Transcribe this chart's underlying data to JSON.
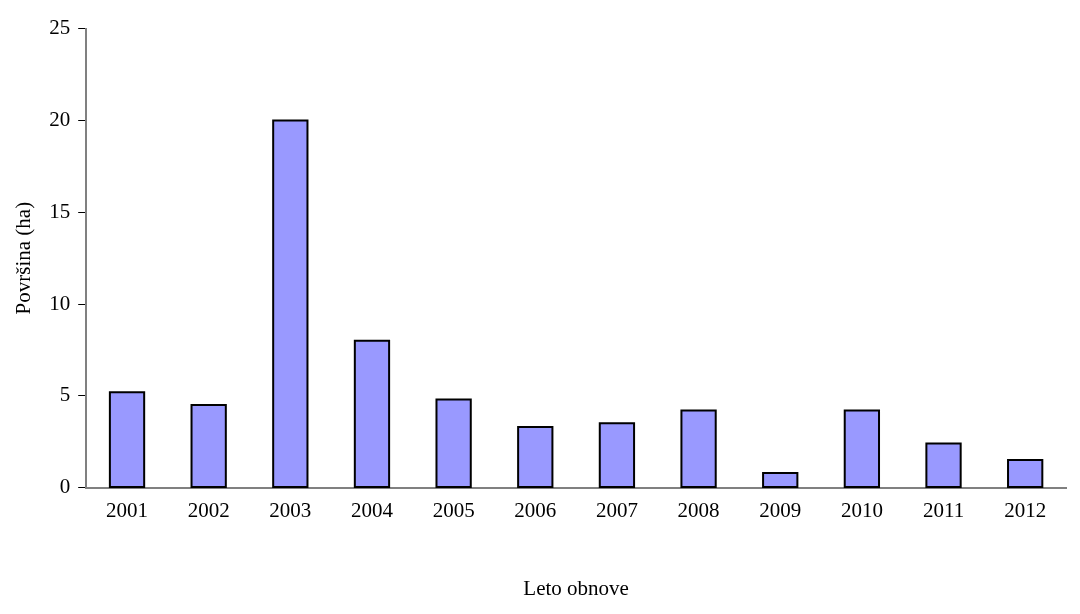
{
  "chart_data": {
    "type": "bar",
    "xlabel": "Leto obnove",
    "ylabel": "Površina (ha)",
    "categories": [
      "2001",
      "2002",
      "2003",
      "2004",
      "2005",
      "2006",
      "2007",
      "2008",
      "2009",
      "2010",
      "2011",
      "2012"
    ],
    "values": [
      5.2,
      4.5,
      20.0,
      8.0,
      4.8,
      3.3,
      3.5,
      4.2,
      0.8,
      4.2,
      2.4,
      1.5
    ],
    "color": "#9999ff",
    "ylim": [
      0,
      25
    ],
    "yticks": [
      0,
      5,
      10,
      15,
      20,
      25
    ],
    "grid": false,
    "legend": false
  }
}
